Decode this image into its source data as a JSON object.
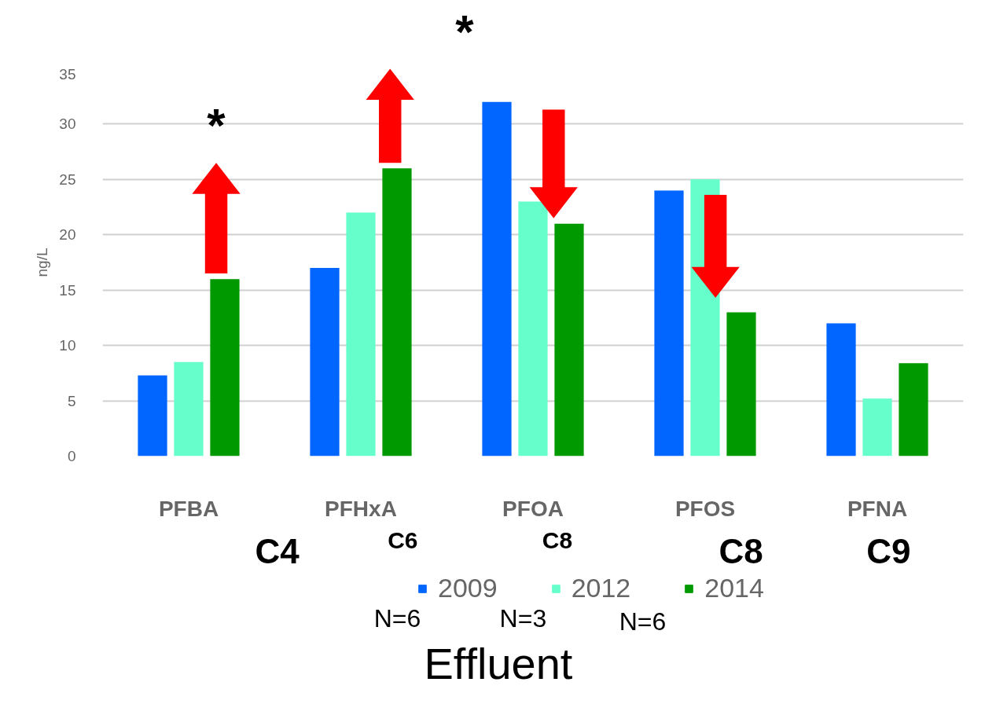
{
  "chart_data": {
    "type": "bar",
    "ylabel": "ng/L",
    "categories": [
      "PFBA",
      "PFHxA",
      "PFOA",
      "PFOS",
      "PFNA"
    ],
    "series": [
      {
        "name": "2009",
        "color": "#0066ff",
        "values": [
          7.3,
          17,
          32,
          24,
          12
        ]
      },
      {
        "name": "2012",
        "color": "#66ffcc",
        "values": [
          8.5,
          22,
          23,
          25,
          5.2
        ]
      },
      {
        "name": "2014",
        "color": "#009900",
        "values": [
          16,
          26,
          21,
          13,
          8.4
        ]
      }
    ],
    "ylim": [
      0,
      35
    ],
    "yticks": [
      0,
      5,
      10,
      15,
      20,
      25,
      30,
      35
    ],
    "grid": "y",
    "legend": "bottom",
    "annotations": [
      "*",
      "*",
      "C4",
      "C6",
      "C8",
      "C8",
      "C9",
      "N=6",
      "N=3",
      "N=6",
      "Effluent"
    ]
  }
}
